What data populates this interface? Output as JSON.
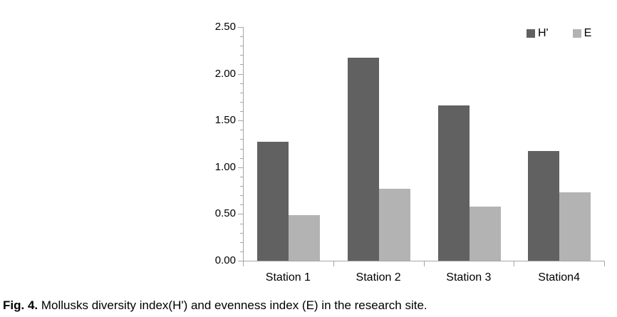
{
  "figure": {
    "caption_label": "Fig. 4.",
    "caption_text": " Mollusks diversity index(H') and evenness index (E) in the research site."
  },
  "colors": {
    "h_series": "#616161",
    "e_series": "#b3b3b3",
    "axis": "#a6a6a6",
    "text": "#000000",
    "background": "#ffffff"
  },
  "chart_data": {
    "type": "bar",
    "title": "",
    "xlabel": "",
    "ylabel": "",
    "categories": [
      "Station 1",
      "Station 2",
      "Station 3",
      "Station4"
    ],
    "series": [
      {
        "name": "H'",
        "color": "#616161",
        "values": [
          1.27,
          2.17,
          1.66,
          1.17
        ]
      },
      {
        "name": "E",
        "color": "#b3b3b3",
        "values": [
          0.49,
          0.77,
          0.58,
          0.73
        ]
      }
    ],
    "ylim": [
      0,
      2.5
    ],
    "y_major_step": 0.5,
    "y_minor_step": 0.1,
    "y_tick_labels": [
      "0.00",
      "0.50",
      "1.00",
      "1.50",
      "2.00",
      "2.50"
    ],
    "grid": false,
    "legend_position": "top-right"
  }
}
